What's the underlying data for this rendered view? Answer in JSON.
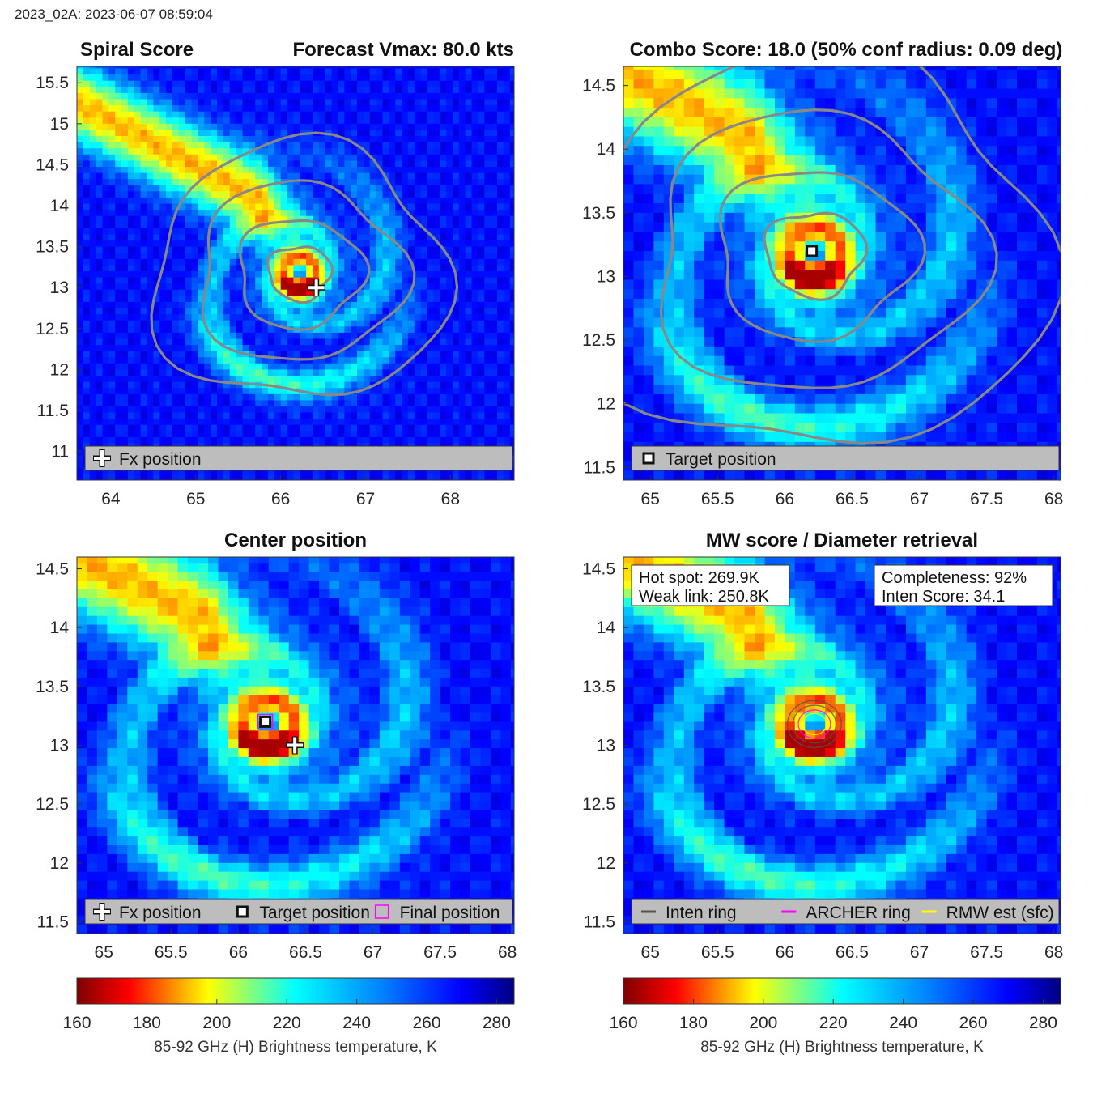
{
  "figure_title": "2023_02A: 2023-06-07 08:59:04",
  "colorbar": {
    "label": "85-92 GHz (H) Brightness temperature, K",
    "ticks": [
      160,
      180,
      200,
      220,
      240,
      260,
      280
    ],
    "range": [
      160,
      285
    ],
    "colormap": "jet-reversed"
  },
  "colors": {
    "contour": "#888888",
    "legend_bg": "#bdbdbd",
    "archer_ring": "#ff00ff",
    "rmw_est": "#ffff00",
    "inten_ring": "#555555"
  },
  "chart_data": [
    {
      "type": "heatmap",
      "title_left": "Spiral Score",
      "title_right": "Forecast Vmax: 80.0 kts",
      "xlim": [
        63.6,
        68.75
      ],
      "ylim": [
        10.65,
        15.7
      ],
      "xticks": [
        64,
        65,
        66,
        67,
        68
      ],
      "yticks": [
        11,
        11.5,
        12,
        12.5,
        13,
        13.5,
        14,
        14.5,
        15,
        15.5
      ],
      "contours": true,
      "markers": [
        {
          "kind": "fx-cross",
          "x": 66.42,
          "y": 13.0
        }
      ],
      "legend": [
        "Fx position"
      ]
    },
    {
      "type": "heatmap",
      "title": "Combo Score: 18.0  (50% conf radius: 0.09 deg)",
      "xlim": [
        64.8,
        68.05
      ],
      "ylim": [
        11.4,
        14.65
      ],
      "xticks": [
        65,
        65.5,
        66,
        66.5,
        67,
        67.5,
        68
      ],
      "yticks": [
        11.5,
        12,
        12.5,
        13,
        13.5,
        14,
        14.5
      ],
      "contours": true,
      "markers": [
        {
          "kind": "target-square",
          "x": 66.2,
          "y": 13.2
        }
      ],
      "legend": [
        "Target position"
      ]
    },
    {
      "type": "heatmap",
      "title": "Center position",
      "xlim": [
        64.8,
        68.05
      ],
      "ylim": [
        11.4,
        14.6
      ],
      "xticks": [
        65,
        65.5,
        66,
        66.5,
        67,
        67.5,
        68
      ],
      "yticks": [
        11.5,
        12,
        12.5,
        13,
        13.5,
        14,
        14.5
      ],
      "contours": false,
      "markers": [
        {
          "kind": "fx-cross",
          "x": 66.42,
          "y": 13.0
        },
        {
          "kind": "target-square",
          "x": 66.2,
          "y": 13.2
        },
        {
          "kind": "final-square",
          "x": 66.2,
          "y": 13.2
        }
      ],
      "legend": [
        "Fx position",
        "Target position",
        "Final position"
      ]
    },
    {
      "type": "heatmap",
      "title": "MW score / Diameter retrieval",
      "xlim": [
        64.8,
        68.05
      ],
      "ylim": [
        11.4,
        14.6
      ],
      "xticks": [
        65,
        65.5,
        66,
        66.5,
        67,
        67.5,
        68
      ],
      "yticks": [
        11.5,
        12,
        12.5,
        13,
        13.5,
        14,
        14.5
      ],
      "contours": false,
      "rings": {
        "x": 66.22,
        "y": 13.18,
        "radii_deg": [
          0.09,
          0.12,
          0.16,
          0.2
        ]
      },
      "info_left": [
        "Hot spot: 269.9K",
        "Weak link: 250.8K"
      ],
      "info_right": [
        "Completeness: 92%",
        "Inten Score: 34.1"
      ],
      "legend": [
        "Inten ring",
        "ARCHER ring",
        "RMW est (sfc)"
      ]
    }
  ]
}
